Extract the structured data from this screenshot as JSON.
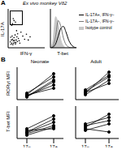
{
  "chart_data": [
    {
      "type": "scatter",
      "title": "Ex vivo monkey Vδ2",
      "annotations": [
        "A"
      ],
      "x_label": "IFN-γ",
      "y_label": "IL-17A",
      "xlim": [
        0,
        100
      ],
      "ylim": [
        0,
        100
      ],
      "xticks": [
        0,
        100
      ],
      "yticks": [
        0,
        100
      ],
      "tick_labels": false,
      "color": "#000000",
      "points": [
        [
          10,
          12
        ],
        [
          14,
          18
        ],
        [
          8,
          9
        ],
        [
          18,
          14
        ],
        [
          12,
          22
        ],
        [
          20,
          10
        ],
        [
          16,
          26
        ],
        [
          22,
          20
        ],
        [
          6,
          15
        ],
        [
          25,
          16
        ],
        [
          11,
          30
        ],
        [
          28,
          24
        ],
        [
          15,
          12
        ],
        [
          19,
          33
        ],
        [
          24,
          28
        ],
        [
          9,
          20
        ],
        [
          30,
          18
        ],
        [
          13,
          8
        ],
        [
          17,
          19
        ],
        [
          21,
          13
        ],
        [
          12,
          62
        ],
        [
          16,
          70
        ],
        [
          10,
          58
        ],
        [
          20,
          66
        ],
        [
          14,
          75
        ],
        [
          18,
          60
        ],
        [
          40,
          30
        ],
        [
          45,
          22
        ],
        [
          35,
          40
        ],
        [
          50,
          35
        ],
        [
          26,
          36
        ],
        [
          32,
          12
        ],
        [
          7,
          27
        ],
        [
          23,
          44
        ],
        [
          55,
          20
        ],
        [
          60,
          28
        ]
      ]
    },
    {
      "type": "line",
      "x_label": "T-bet",
      "x": [
        0,
        10,
        20,
        30,
        40,
        50,
        60,
        70,
        80,
        90,
        100
      ],
      "xlim": [
        0,
        100
      ],
      "ylim": [
        0,
        100
      ],
      "xticks": [
        0,
        100
      ],
      "yticks": [
        0,
        100
      ],
      "tick_labels": false,
      "legend": "right",
      "series": [
        {
          "name": "IL-17A+, IFN-γ−",
          "color": "#000000",
          "type": "line",
          "values": [
            0,
            2,
            10,
            30,
            50,
            55,
            40,
            20,
            8,
            2,
            0
          ]
        },
        {
          "name": "IL-17A−, IFN-γ−",
          "color": "#777777",
          "type": "line",
          "values": [
            0,
            5,
            30,
            70,
            55,
            25,
            8,
            2,
            0,
            0,
            0
          ]
        },
        {
          "name": "Isotype control",
          "color": "#c8c8c8",
          "type": "area",
          "values": [
            0,
            20,
            80,
            60,
            20,
            5,
            0,
            0,
            0,
            0,
            0
          ]
        }
      ]
    },
    {
      "type": "line",
      "annotations": [
        "B"
      ],
      "title": "Neonate",
      "y_label": "RORγt MFI",
      "categories": [
        "17−",
        "17+"
      ],
      "ylim": [
        0,
        100
      ],
      "yticks": [
        0,
        50,
        100
      ],
      "tick_labels": false,
      "color": "#000000",
      "marker": "circle",
      "series": [
        {
          "values": [
            10,
            60
          ]
        },
        {
          "values": [
            12,
            45
          ]
        },
        {
          "values": [
            8,
            55
          ]
        },
        {
          "values": [
            15,
            80
          ]
        },
        {
          "values": [
            20,
            70
          ]
        },
        {
          "values": [
            14,
            35
          ]
        }
      ]
    },
    {
      "type": "line",
      "title": "Adult",
      "categories": [
        "17−",
        "17+"
      ],
      "ylim": [
        0,
        100
      ],
      "yticks": [
        0,
        50,
        100
      ],
      "tick_labels": false,
      "color": "#000000",
      "marker": "circle",
      "series": [
        {
          "values": [
            20,
            85
          ]
        },
        {
          "values": [
            25,
            70
          ]
        },
        {
          "values": [
            15,
            60
          ]
        },
        {
          "values": [
            30,
            75
          ]
        },
        {
          "values": [
            22,
            50
          ]
        }
      ]
    },
    {
      "type": "line",
      "y_label": "T-bet MFI",
      "categories": [
        "17−",
        "17+"
      ],
      "ylim": [
        0,
        100
      ],
      "yticks": [
        0,
        50,
        100
      ],
      "tick_labels": "x",
      "color": "#000000",
      "marker": "circle",
      "series": [
        {
          "values": [
            20,
            60
          ]
        },
        {
          "values": [
            15,
            40
          ]
        },
        {
          "values": [
            25,
            30
          ]
        },
        {
          "values": [
            10,
            35
          ]
        },
        {
          "values": [
            30,
            70
          ]
        },
        {
          "values": [
            18,
            50
          ]
        }
      ]
    },
    {
      "type": "line",
      "categories": [
        "17−",
        "17+"
      ],
      "ylim": [
        0,
        100
      ],
      "yticks": [
        0,
        50,
        100
      ],
      "tick_labels": "x",
      "color": "#000000",
      "marker": "circle",
      "series": [
        {
          "values": [
            35,
            75
          ]
        },
        {
          "values": [
            40,
            55
          ]
        },
        {
          "values": [
            30,
            20
          ]
        },
        {
          "values": [
            25,
            45
          ]
        },
        {
          "values": [
            45,
            65
          ]
        }
      ]
    }
  ]
}
